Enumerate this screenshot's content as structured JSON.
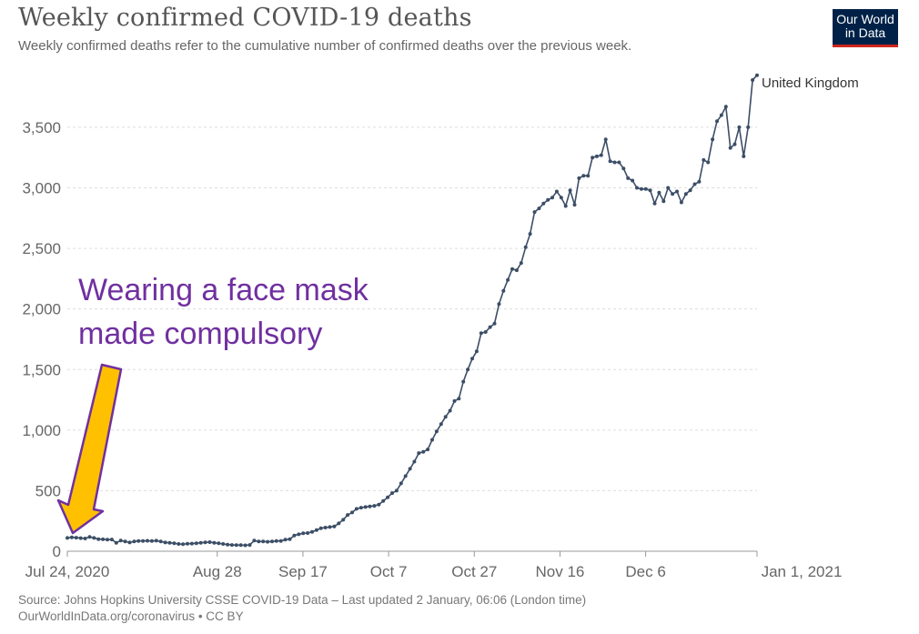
{
  "header": {
    "title": "Weekly confirmed COVID-19 deaths",
    "subtitle": "Weekly confirmed deaths refer to the cumulative number of confirmed deaths over the previous week."
  },
  "logo": {
    "line1": "Our World",
    "line2": "in Data",
    "bg_color": "#002147",
    "accent_color": "#ce261e"
  },
  "footer": {
    "source": "Source: Johns Hopkins University CSSE COVID-19 Data – Last updated 2 January, 06:06 (London time)",
    "credit": "OurWorldInData.org/coronavirus • CC BY"
  },
  "annotation": {
    "lines": [
      "Wearing a face mask",
      "made compulsory"
    ],
    "text_color": "#7030a0",
    "arrow_fill": "#ffc000",
    "arrow_stroke": "#7030a0",
    "points_to": "2020-07-24"
  },
  "chart_data": {
    "type": "line",
    "title": "Weekly confirmed COVID-19 deaths",
    "xlabel": "",
    "ylabel": "",
    "ylim": [
      0,
      3950
    ],
    "yticks": [
      0,
      500,
      1000,
      1500,
      2000,
      2500,
      3000,
      3500
    ],
    "ytick_labels": [
      "0",
      "500",
      "1,000",
      "1,500",
      "2,000",
      "2,500",
      "3,000",
      "3,500"
    ],
    "xticks": [
      {
        "date": "2020-07-24",
        "label": "Jul 24, 2020"
      },
      {
        "date": "2020-08-28",
        "label": "Aug 28"
      },
      {
        "date": "2020-09-17",
        "label": "Sep 17"
      },
      {
        "date": "2020-10-07",
        "label": "Oct 7"
      },
      {
        "date": "2020-10-27",
        "label": "Oct 27"
      },
      {
        "date": "2020-11-16",
        "label": "Nov 16"
      },
      {
        "date": "2020-12-06",
        "label": "Dec 6"
      },
      {
        "date": "2021-01-01",
        "label": "Jan 1, 2021"
      }
    ],
    "grid": true,
    "line_color": "#3c4e66",
    "series": [
      {
        "name": "United Kingdom",
        "start_date": "2020-07-24",
        "values": [
          110,
          115,
          112,
          108,
          105,
          118,
          110,
          100,
          98,
          95,
          97,
          70,
          88,
          80,
          72,
          80,
          85,
          85,
          86,
          84,
          87,
          80,
          72,
          70,
          65,
          60,
          58,
          62,
          63,
          66,
          70,
          73,
          75,
          70,
          65,
          60,
          55,
          52,
          50,
          50,
          49,
          52,
          88,
          80,
          80,
          78,
          80,
          85,
          85,
          95,
          100,
          130,
          140,
          148,
          150,
          160,
          175,
          190,
          195,
          200,
          205,
          230,
          260,
          300,
          320,
          350,
          360,
          365,
          370,
          375,
          385,
          415,
          445,
          480,
          500,
          560,
          620,
          680,
          740,
          810,
          820,
          840,
          920,
          990,
          1050,
          1110,
          1160,
          1240,
          1260,
          1400,
          1500,
          1590,
          1650,
          1800,
          1810,
          1850,
          1880,
          2040,
          2150,
          2240,
          2330,
          2320,
          2380,
          2510,
          2620,
          2800,
          2830,
          2870,
          2900,
          2920,
          2970,
          2920,
          2850,
          2980,
          2860,
          3080,
          3100,
          3100,
          3250,
          3260,
          3270,
          3400,
          3220,
          3210,
          3210,
          3160,
          3080,
          3060,
          3000,
          2990,
          2990,
          2980,
          2870,
          2960,
          2890,
          3000,
          2950,
          2970,
          2880,
          2950,
          2980,
          3030,
          3050,
          3230,
          3210,
          3400,
          3550,
          3600,
          3670,
          3330,
          3360,
          3500,
          3260,
          3500,
          3890,
          3930
        ]
      }
    ]
  }
}
